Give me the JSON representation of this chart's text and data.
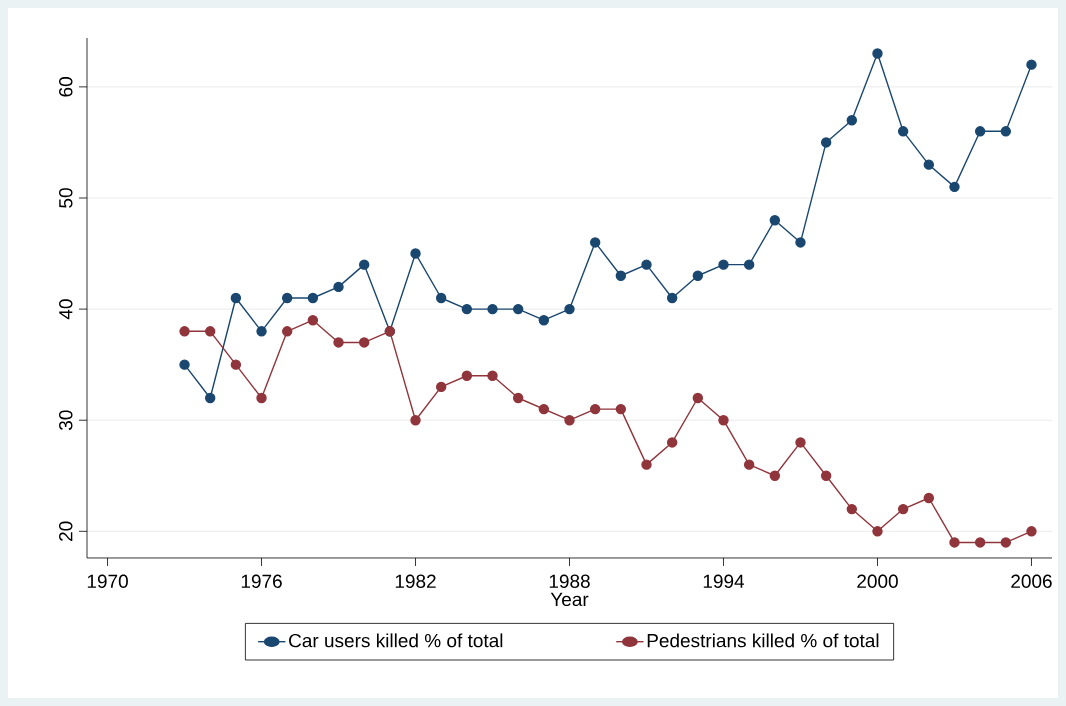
{
  "chart_data": {
    "type": "line",
    "xlabel": "Year",
    "x": [
      1973,
      1974,
      1975,
      1976,
      1977,
      1978,
      1979,
      1980,
      1981,
      1982,
      1983,
      1984,
      1985,
      1986,
      1987,
      1988,
      1989,
      1990,
      1991,
      1992,
      1993,
      1994,
      1995,
      1996,
      1997,
      1998,
      1999,
      2000,
      2001,
      2002,
      2003,
      2004,
      2005,
      2006
    ],
    "series": [
      {
        "name": "Car users killed % of total",
        "color": "#1a476f",
        "values": [
          35,
          32,
          41,
          38,
          41,
          41,
          42,
          44,
          38,
          45,
          41,
          40,
          40,
          40,
          39,
          40,
          46,
          43,
          44,
          41,
          43,
          44,
          44,
          48,
          46,
          55,
          57,
          63,
          56,
          53,
          51,
          56,
          56,
          62
        ]
      },
      {
        "name": "Pedestrians killed % of total",
        "color": "#90353b",
        "values": [
          38,
          38,
          35,
          32,
          38,
          39,
          37,
          37,
          38,
          30,
          33,
          34,
          34,
          32,
          31,
          30,
          31,
          31,
          26,
          28,
          32,
          30,
          26,
          25,
          28,
          25,
          22,
          20,
          22,
          23,
          19,
          19,
          19,
          20
        ]
      }
    ],
    "xlim": [
      1969.2,
      2006.8
    ],
    "ylim": [
      17.6,
      64.4
    ],
    "xticks": [
      1970,
      1976,
      1982,
      1988,
      1994,
      2000,
      2006
    ],
    "yticks": [
      20,
      30,
      40,
      50,
      60
    ],
    "grid": "y",
    "legend": "bottom",
    "marker": "circle",
    "line_style": "solid"
  }
}
